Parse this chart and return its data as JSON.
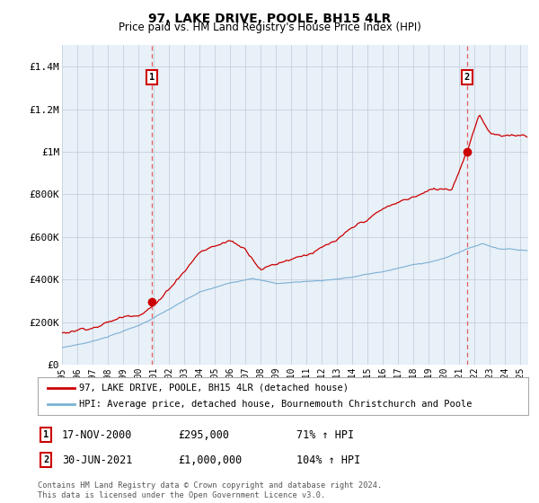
{
  "title": "97, LAKE DRIVE, POOLE, BH15 4LR",
  "subtitle": "Price paid vs. HM Land Registry's House Price Index (HPI)",
  "ylim": [
    0,
    1500000
  ],
  "yticks": [
    0,
    200000,
    400000,
    600000,
    800000,
    1000000,
    1200000,
    1400000
  ],
  "ytick_labels": [
    "£0",
    "£200K",
    "£400K",
    "£600K",
    "£800K",
    "£1M",
    "£1.2M",
    "£1.4M"
  ],
  "x_start_year": 1995,
  "x_end_year": 2025,
  "sale1_year": 2000.88,
  "sale1_price": 295000,
  "sale1_label": "1",
  "sale1_date": "17-NOV-2000",
  "sale1_hpi_pct": "71% ↑ HPI",
  "sale2_year": 2021.49,
  "sale2_price": 1000000,
  "sale2_label": "2",
  "sale2_date": "30-JUN-2021",
  "sale2_hpi_pct": "104% ↑ HPI",
  "line1_color": "#cc0000",
  "line2_color": "#7ab0d4",
  "vline_color": "#e06060",
  "chart_bg_color": "#e8f0f8",
  "background_color": "#ffffff",
  "grid_color": "#c0c8d8",
  "legend_line1": "97, LAKE DRIVE, POOLE, BH15 4LR (detached house)",
  "legend_line2": "HPI: Average price, detached house, Bournemouth Christchurch and Poole",
  "footer": "Contains HM Land Registry data © Crown copyright and database right 2024.\nThis data is licensed under the Open Government Licence v3.0."
}
